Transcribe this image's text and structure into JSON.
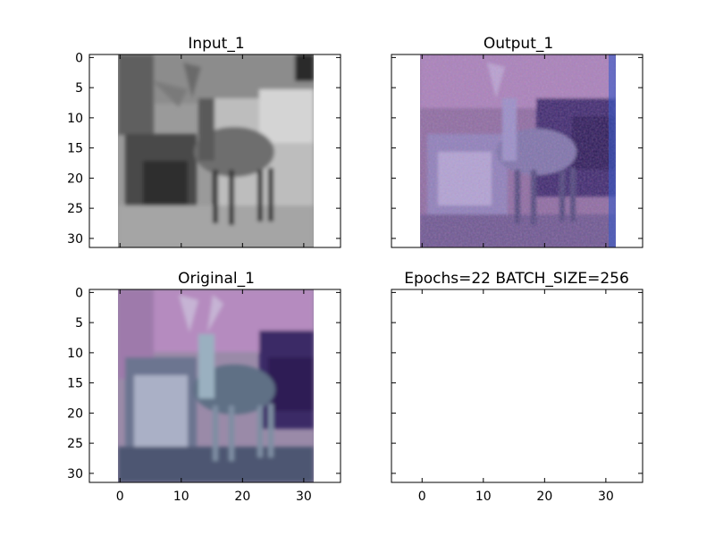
{
  "chart_data": [
    {
      "type": "image",
      "title": "Input_1",
      "colormap": "grayscale",
      "xlim": [
        -5,
        36
      ],
      "ylim": [
        31.5,
        -0.5
      ],
      "xticks": [
        0,
        10,
        20,
        30
      ],
      "yticks": [
        0,
        5,
        10,
        15,
        20,
        25,
        30
      ],
      "show_xticklabels": false,
      "show_yticklabels": true
    },
    {
      "type": "image",
      "title": "Output_1",
      "colormap": "rgb-purple",
      "xlim": [
        -5,
        36
      ],
      "ylim": [
        31.5,
        -0.5
      ],
      "xticks": [
        0,
        10,
        20,
        30
      ],
      "yticks": [
        0,
        5,
        10,
        15,
        20,
        25,
        30
      ],
      "show_xticklabels": false,
      "show_yticklabels": false
    },
    {
      "type": "image",
      "title": "Original_1",
      "colormap": "rgb-purple",
      "xlim": [
        -5,
        36
      ],
      "ylim": [
        31.5,
        -0.5
      ],
      "xticks": [
        0,
        10,
        20,
        30
      ],
      "yticks": [
        0,
        5,
        10,
        15,
        20,
        25,
        30
      ],
      "show_xticklabels": true,
      "show_yticklabels": true
    },
    {
      "type": "empty",
      "title": "Epochs=22 BATCH_SIZE=256",
      "xlim": [
        -5,
        36
      ],
      "ylim": [
        31.5,
        -0.5
      ],
      "xticks": [
        0,
        10,
        20,
        30
      ],
      "yticks": [
        0,
        5,
        10,
        15,
        20,
        25,
        30
      ],
      "show_xticklabels": true,
      "show_yticklabels": false
    }
  ]
}
